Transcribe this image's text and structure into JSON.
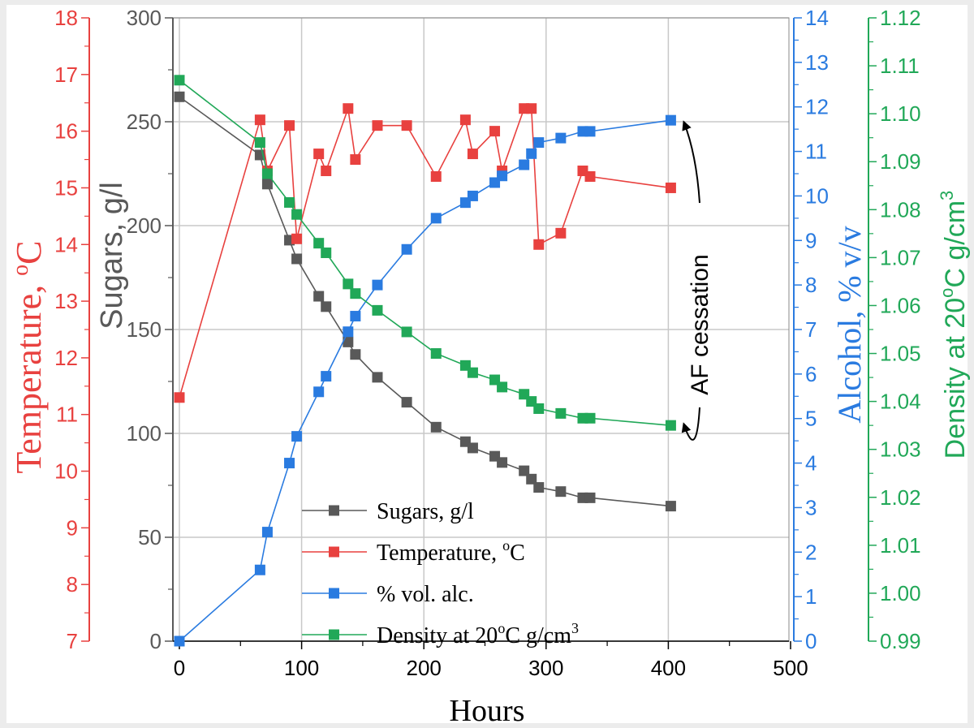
{
  "chart_data": {
    "type": "line",
    "xlabel": "Hours",
    "xlim": [
      0,
      500
    ],
    "xticks": [
      0,
      100,
      200,
      300,
      400,
      500
    ],
    "grid": true,
    "legend_placement": "bottom-center",
    "axes": {
      "sugars": {
        "label": "Sugars, g/l",
        "range": [
          0,
          300
        ],
        "ticks": [
          0,
          50,
          100,
          150,
          200,
          250,
          300
        ],
        "color": "#595959"
      },
      "temperature": {
        "label_main": "Temperature, ",
        "label_unit": "C",
        "label_sup": "o",
        "range": [
          7,
          18
        ],
        "ticks": [
          7,
          8,
          9,
          10,
          11,
          12,
          13,
          14,
          15,
          16,
          17,
          18
        ],
        "color": "#e8413f"
      },
      "alcohol": {
        "label": "Alcohol, % v/v",
        "range": [
          0,
          14
        ],
        "ticks": [
          0,
          1,
          2,
          3,
          4,
          5,
          6,
          7,
          8,
          9,
          10,
          11,
          12,
          13,
          14
        ],
        "color": "#2a7be0"
      },
      "density": {
        "label_main": "Density at 20",
        "label_sup1": "o",
        "label_mid": "C g/cm",
        "label_sup2": "3",
        "range": [
          0.99,
          1.12
        ],
        "ticks": [
          "0.99",
          "1.00",
          "1.01",
          "1.02",
          "1.03",
          "1.04",
          "1.05",
          "1.06",
          "1.07",
          "1.08",
          "1.09",
          "1.10",
          "1.11",
          "1.12"
        ],
        "color": "#21a858"
      }
    },
    "series": [
      {
        "name": "Sugars, g/l",
        "axis": "sugars",
        "color": "#595959",
        "points": [
          [
            0,
            262
          ],
          [
            66,
            234
          ],
          [
            72,
            220
          ],
          [
            90,
            193
          ],
          [
            96,
            184
          ],
          [
            114,
            166
          ],
          [
            120,
            161
          ],
          [
            138,
            144
          ],
          [
            144,
            138
          ],
          [
            162,
            127
          ],
          [
            186,
            115
          ],
          [
            210,
            103
          ],
          [
            234,
            96
          ],
          [
            240,
            93
          ],
          [
            258,
            89
          ],
          [
            264,
            86
          ],
          [
            282,
            82
          ],
          [
            288,
            78
          ],
          [
            294,
            74
          ],
          [
            312,
            72
          ],
          [
            330,
            69
          ],
          [
            336,
            69
          ],
          [
            402,
            65
          ]
        ]
      },
      {
        "name": "Temperature, oC",
        "axis": "temperature",
        "color": "#e8413f",
        "points": [
          [
            0,
            11.3
          ],
          [
            66,
            16.2
          ],
          [
            72,
            15.3
          ],
          [
            90,
            16.1
          ],
          [
            96,
            14.1
          ],
          [
            114,
            15.6
          ],
          [
            120,
            15.3
          ],
          [
            138,
            16.4
          ],
          [
            144,
            15.5
          ],
          [
            162,
            16.1
          ],
          [
            186,
            16.1
          ],
          [
            210,
            15.2
          ],
          [
            234,
            16.2
          ],
          [
            240,
            15.6
          ],
          [
            258,
            16.0
          ],
          [
            264,
            15.3
          ],
          [
            282,
            16.4
          ],
          [
            288,
            16.4
          ],
          [
            294,
            14.0
          ],
          [
            312,
            14.2
          ],
          [
            330,
            15.3
          ],
          [
            336,
            15.2
          ],
          [
            402,
            15.0
          ]
        ]
      },
      {
        "name": "% vol. alc.",
        "axis": "alcohol",
        "color": "#2a7be0",
        "points": [
          [
            0,
            0
          ],
          [
            66,
            1.6
          ],
          [
            72,
            2.45
          ],
          [
            90,
            4.0
          ],
          [
            96,
            4.6
          ],
          [
            114,
            5.6
          ],
          [
            120,
            5.95
          ],
          [
            138,
            6.95
          ],
          [
            144,
            7.3
          ],
          [
            162,
            8.0
          ],
          [
            186,
            8.8
          ],
          [
            210,
            9.5
          ],
          [
            234,
            9.85
          ],
          [
            240,
            10.0
          ],
          [
            258,
            10.3
          ],
          [
            264,
            10.45
          ],
          [
            282,
            10.7
          ],
          [
            288,
            10.95
          ],
          [
            294,
            11.2
          ],
          [
            312,
            11.3
          ],
          [
            330,
            11.45
          ],
          [
            336,
            11.45
          ],
          [
            402,
            11.7
          ]
        ]
      },
      {
        "name": "Density at 20oC g/cm3",
        "axis": "density",
        "color": "#21a858",
        "points": [
          [
            0,
            1.107
          ],
          [
            66,
            1.094
          ],
          [
            72,
            1.0875
          ],
          [
            90,
            1.0815
          ],
          [
            96,
            1.079
          ],
          [
            114,
            1.073
          ],
          [
            120,
            1.071
          ],
          [
            138,
            1.0645
          ],
          [
            144,
            1.0625
          ],
          [
            162,
            1.059
          ],
          [
            186,
            1.0545
          ],
          [
            210,
            1.05
          ],
          [
            234,
            1.0475
          ],
          [
            240,
            1.046
          ],
          [
            258,
            1.0445
          ],
          [
            264,
            1.043
          ],
          [
            282,
            1.0415
          ],
          [
            288,
            1.04
          ],
          [
            294,
            1.0385
          ],
          [
            312,
            1.0375
          ],
          [
            330,
            1.0365
          ],
          [
            336,
            1.0365
          ],
          [
            402,
            1.035
          ]
        ]
      }
    ],
    "legend": [
      {
        "label": "Sugars, g/l",
        "color": "#595959"
      },
      {
        "label_main": "Temperature, ",
        "label_sup": "o",
        "label_tail": "C",
        "color": "#e8413f"
      },
      {
        "label": "% vol. alc.",
        "color": "#2a7be0"
      },
      {
        "label_main": "Density at 20",
        "label_sup": "o",
        "label_tail": "C g/cm",
        "label_sup2": "3",
        "color": "#21a858"
      }
    ],
    "annotations": [
      {
        "text": "AF cessation",
        "arrow_x": 402,
        "targets": [
          "alcohol-end",
          "density-end"
        ]
      }
    ]
  }
}
